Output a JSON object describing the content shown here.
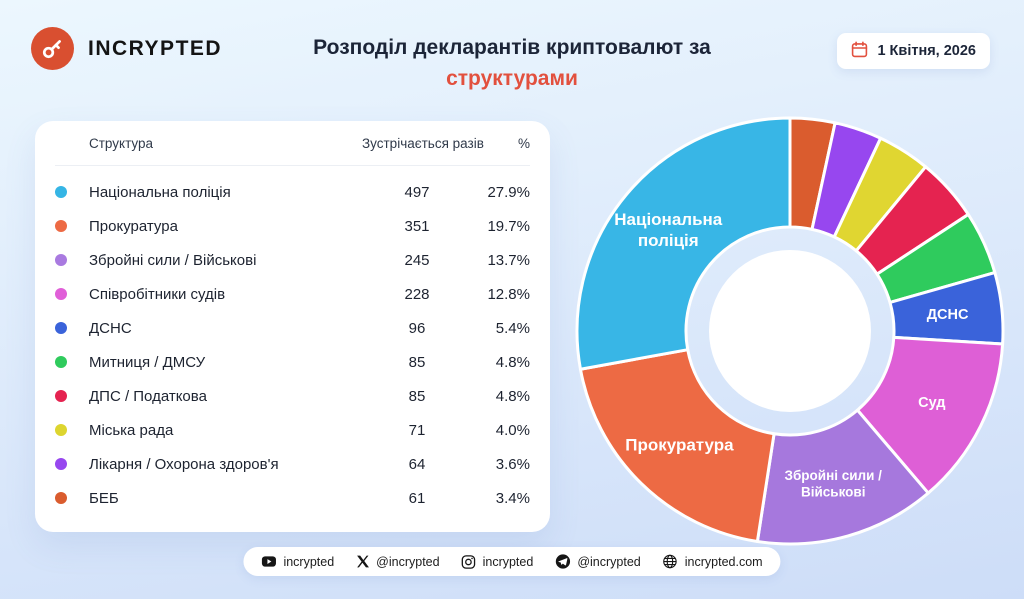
{
  "header": {
    "brand": "INCRYPTED",
    "title_line1": "Розподіл декларантів криптовалют за",
    "title_accent": "структурами",
    "date": "1 Квітня, 2026",
    "accent_color": "#e2503e",
    "logo_color": "#d94f30"
  },
  "table": {
    "col_structure": "Структура",
    "col_count": "Зустрічається разів",
    "col_percent": "%",
    "rows": [
      {
        "label": "Національна поліція",
        "count": "497",
        "percent": "27.9%",
        "color": "#35b5e5"
      },
      {
        "label": "Прокуратура",
        "count": "351",
        "percent": "19.7%",
        "color": "#ed6a44"
      },
      {
        "label": "Збройні сили / Військові",
        "count": "245",
        "percent": "13.7%",
        "color": "#a97ae0"
      },
      {
        "label": "Співробітники судів",
        "count": "228",
        "percent": "12.8%",
        "color": "#e05fd8"
      },
      {
        "label": "ДСНС",
        "count": "96",
        "percent": "5.4%",
        "color": "#3a63da"
      },
      {
        "label": "Митниця / ДМСУ",
        "count": "85",
        "percent": "4.8%",
        "color": "#2fcb5d"
      },
      {
        "label": "ДПС / Податкова",
        "count": "85",
        "percent": "4.8%",
        "color": "#e52350"
      },
      {
        "label": "Міська рада",
        "count": "71",
        "percent": "4.0%",
        "color": "#ddd52f"
      },
      {
        "label": "Лікарня / Охорона здоров'я",
        "count": "64",
        "percent": "3.6%",
        "color": "#9747ef"
      },
      {
        "label": "БЕБ",
        "count": "61",
        "percent": "3.4%",
        "color": "#da5c2e"
      }
    ]
  },
  "chart_data": {
    "type": "pie",
    "donut": true,
    "title": "Розподіл декларантів криптовалют за структурами",
    "start_angle_deg": -90,
    "draw_order": "reverse of segments list, clockwise from 12 o'clock",
    "segments": [
      {
        "name": "Національна поліція",
        "value": 497,
        "percent": 27.9,
        "color": "#38b6e6",
        "chart_label": [
          "Національна",
          "поліція"
        ],
        "label_font": 17
      },
      {
        "name": "Прокуратура",
        "value": 351,
        "percent": 19.7,
        "color": "#ed6a44",
        "chart_label": [
          "Прокуратура"
        ],
        "label_font": 17
      },
      {
        "name": "Збройні сили / Військові",
        "value": 245,
        "percent": 13.7,
        "color": "#a678dd",
        "chart_label": [
          "Збройні сили /",
          "Військові"
        ],
        "label_font": 13.5
      },
      {
        "name": "Співробітники судів",
        "value": 228,
        "percent": 12.8,
        "color": "#de5fd6",
        "chart_label": [
          "Суд"
        ],
        "label_font": 14.5
      },
      {
        "name": "ДСНС",
        "value": 96,
        "percent": 5.4,
        "color": "#3a63da",
        "chart_label": [
          "ДСНС"
        ],
        "label_font": 14.5
      },
      {
        "name": "Митниця / ДМСУ",
        "value": 85,
        "percent": 4.8,
        "color": "#2fcb5d",
        "chart_label": null,
        "label_font": 0
      },
      {
        "name": "ДПС / Податкова",
        "value": 85,
        "percent": 4.8,
        "color": "#e52350",
        "chart_label": null,
        "label_font": 0
      },
      {
        "name": "Міська рада",
        "value": 71,
        "percent": 4.0,
        "color": "#e0d631",
        "chart_label": null,
        "label_font": 0
      },
      {
        "name": "Лікарня / Охорона здоров'я",
        "value": 64,
        "percent": 3.6,
        "color": "#9747ef",
        "chart_label": null,
        "label_font": 0
      },
      {
        "name": "БЕБ",
        "value": 61,
        "percent": 3.4,
        "color": "#da5c2e",
        "chart_label": null,
        "label_font": 0
      }
    ]
  },
  "footer": {
    "items": [
      {
        "icon": "youtube-icon",
        "label": "incrypted"
      },
      {
        "icon": "x-icon",
        "label": "@incrypted"
      },
      {
        "icon": "instagram-icon",
        "label": "incrypted"
      },
      {
        "icon": "telegram-icon",
        "label": "@incrypted"
      },
      {
        "icon": "globe-icon",
        "label": "incrypted.com"
      }
    ]
  }
}
